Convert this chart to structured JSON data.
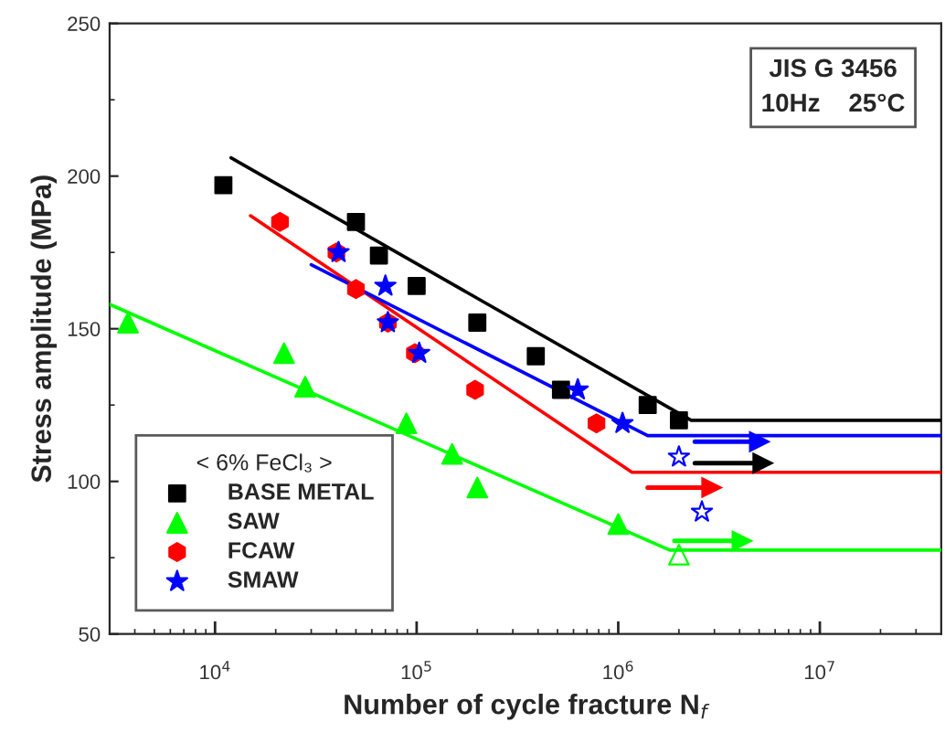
{
  "chart_data": {
    "type": "scatter",
    "xlabel": "Number of cycle fracture N$_{f}$",
    "ylabel": "Stress amplitude (MPa)",
    "legend_title": "< 6% FeCl₃ >",
    "log": "x",
    "xlim": [
      3000,
      40000000
    ],
    "xticks": [
      {
        "value": 10000,
        "label": "10$^{4}$"
      },
      {
        "value": 100000,
        "label": "10$^{5}$"
      },
      {
        "value": 1000000,
        "label": "10$^{6}$"
      },
      {
        "value": 10000000,
        "label": "10$^{7}$"
      }
    ],
    "ylim": [
      50,
      250
    ],
    "yticks": [
      50,
      100,
      150,
      200,
      250
    ],
    "grid": false,
    "legend": "bottom left",
    "annotations": [
      "JIS G 3456\n10Hz    25°C"
    ],
    "series": [
      {
        "name": "BASE METAL",
        "marker": "square",
        "color": "#000000",
        "x": [
          11000,
          50000,
          65000,
          100000,
          200000,
          390000,
          520000,
          1400000,
          2000000
        ],
        "values": [
          197,
          185,
          174,
          164,
          152,
          141,
          130,
          125,
          120
        ]
      },
      {
        "name": "SAW",
        "marker": "triangle",
        "color": "#00ff00",
        "x": [
          3700,
          22000,
          28000,
          89000,
          150000,
          200000,
          1000000
        ],
        "values": [
          152,
          142,
          131,
          119,
          109,
          98,
          86
        ]
      },
      {
        "name": "FCAW",
        "marker": "circle",
        "color": "#ff0000",
        "x": [
          21000,
          40000,
          50000,
          72000,
          98000,
          195000,
          780000
        ],
        "values": [
          185,
          175,
          163,
          152,
          142,
          130,
          119
        ]
      },
      {
        "name": "SMAW",
        "marker": "star",
        "color": "#0000ff",
        "x": [
          41000,
          70000,
          72000,
          103000,
          630000,
          1050000
        ],
        "values": [
          175,
          164,
          152,
          142,
          130,
          119
        ]
      },
      {
        "marker": "triangle",
        "color": "#00ff00",
        "x": [
          2000000
        ],
        "values": [
          76
        ]
      },
      {
        "marker": "star",
        "color": "#0000ff",
        "x": [
          2000000,
          2600000
        ],
        "values": [
          108,
          90
        ]
      },
      {
        "type": "line",
        "color": "#000000",
        "x": [
          12000,
          2300000,
          40000000
        ],
        "values": [
          206,
          120,
          120
        ]
      },
      {
        "type": "line",
        "color": "#ff0000",
        "x": [
          15000,
          1170000,
          40000000
        ],
        "values": [
          187,
          103,
          103
        ]
      },
      {
        "type": "line",
        "color": "#0000ff",
        "x": [
          30000,
          1400000,
          40000000
        ],
        "values": [
          171,
          115,
          115
        ]
      },
      {
        "type": "line",
        "color": "#00ff00",
        "x": [
          3000,
          1800000,
          40000000
        ],
        "values": [
          158,
          77.5,
          77.5
        ]
      },
      {
        "type": "line",
        "color": "#0000ff",
        "x": [
          2400000,
          5000000
        ],
        "values": [
          113,
          113
        ]
      },
      {
        "type": "line",
        "color": "#000000",
        "x": [
          2400000,
          5200000
        ],
        "values": [
          106,
          106
        ]
      },
      {
        "type": "line",
        "color": "#ff0000",
        "x": [
          1400000,
          2900000
        ],
        "values": [
          98,
          98
        ]
      },
      {
        "type": "line",
        "color": "#00ff00",
        "x": [
          1900000,
          4100000
        ],
        "values": [
          80.5,
          80.5
        ]
      }
    ]
  }
}
